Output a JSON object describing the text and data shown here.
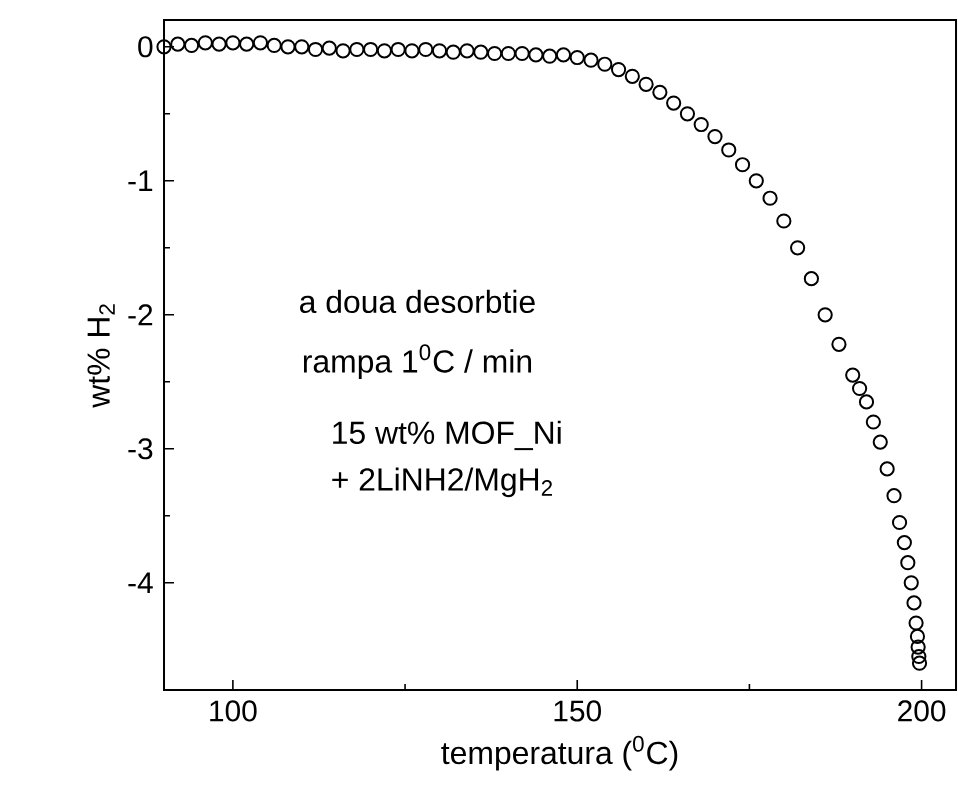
{
  "chart_data": {
    "type": "scatter",
    "xlabel": "temperatura ($^{0}$C)",
    "ylabel": "wt% H$_{2}$",
    "xlim": [
      90,
      205
    ],
    "ylim": [
      -4.8,
      0.2
    ],
    "xticks": [
      100,
      150,
      200
    ],
    "yticks": [
      -4,
      -3,
      -2,
      -1,
      0
    ],
    "marker": "circle",
    "grid": false,
    "annotations": [
      "a doua desorbtie",
      "rampa  1$^{0}$C / min",
      "15 wt%  MOF_Ni",
      "+ 2LiNH2/MgH$_{2}$"
    ],
    "series": [
      {
        "color": "#000000",
        "x": [
          90,
          92,
          94,
          96,
          98,
          100,
          102,
          104,
          106,
          108,
          110,
          112,
          114,
          116,
          118,
          120,
          122,
          124,
          126,
          128,
          130,
          132,
          134,
          136,
          138,
          140,
          142,
          144,
          146,
          148,
          150,
          152,
          154,
          156,
          158,
          160,
          162,
          164,
          166,
          168,
          170,
          172,
          174,
          176,
          178,
          180,
          182,
          184,
          186,
          188,
          190,
          191,
          192,
          193,
          194,
          195,
          196,
          196.8,
          197.5,
          198,
          198.5,
          198.9,
          199.2,
          199.4,
          199.5,
          199.6,
          199.7
        ],
        "values": [
          0.0,
          0.02,
          0.01,
          0.03,
          0.02,
          0.03,
          0.02,
          0.03,
          0.01,
          0.0,
          0.0,
          -0.02,
          -0.01,
          -0.03,
          -0.02,
          -0.02,
          -0.03,
          -0.02,
          -0.03,
          -0.02,
          -0.03,
          -0.04,
          -0.03,
          -0.04,
          -0.05,
          -0.05,
          -0.05,
          -0.06,
          -0.07,
          -0.06,
          -0.08,
          -0.1,
          -0.13,
          -0.17,
          -0.22,
          -0.28,
          -0.34,
          -0.42,
          -0.5,
          -0.58,
          -0.67,
          -0.77,
          -0.88,
          -1.0,
          -1.13,
          -1.3,
          -1.5,
          -1.73,
          -2.0,
          -2.22,
          -2.45,
          -2.55,
          -2.65,
          -2.8,
          -2.95,
          -3.15,
          -3.35,
          -3.55,
          -3.7,
          -3.85,
          -4.0,
          -4.15,
          -4.3,
          -4.4,
          -4.48,
          -4.55,
          -4.6
        ]
      }
    ]
  }
}
